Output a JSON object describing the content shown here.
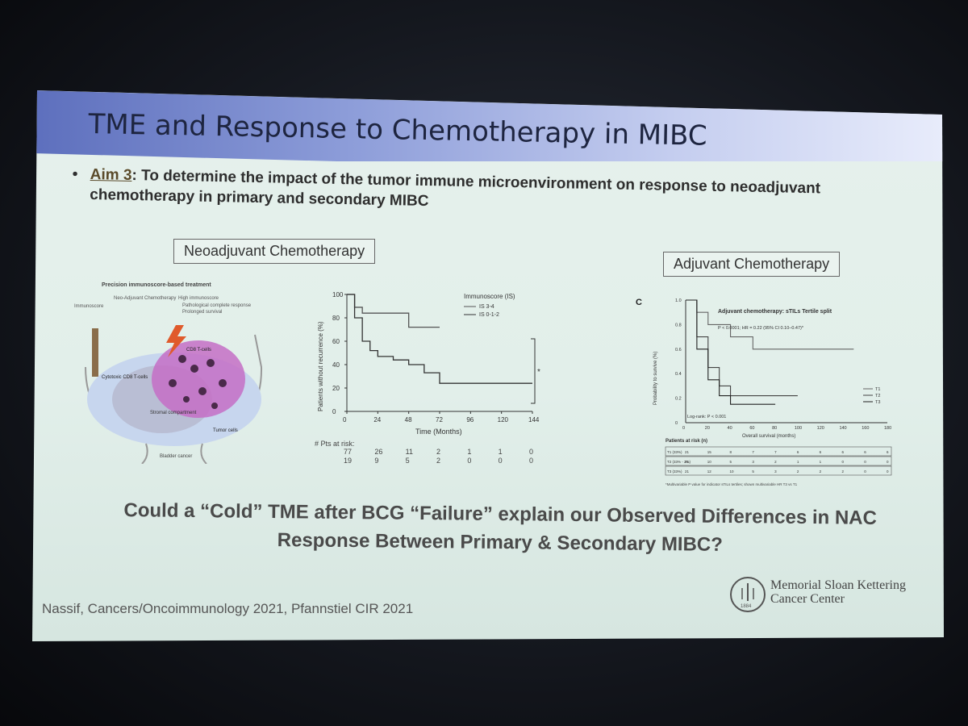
{
  "slide": {
    "title": "TME and Response to Chemotherapy in MIBC",
    "aim_bullet": "•",
    "aim_label": "Aim 3",
    "aim_text": ": To determine the impact of the tumor immune microenvironment on response to neoadjuvant chemotherapy in primary and secondary MIBC",
    "neo_label": "Neoadjuvant Chemotherapy",
    "adj_label": "Adjuvant Chemotherapy",
    "question_line1": "Could a “Cold” TME after BCG “Failure” explain our Observed Differences in NAC",
    "question_line2": "Response Between Primary & Secondary MIBC?",
    "citation": "Nassif, Cancers/Oncoimmunology 2021, Pfannstiel CIR 2021",
    "logo_line1": "Memorial Sloan Kettering",
    "logo_line2": "Cancer Center",
    "logo_year": "1884"
  },
  "figure1": {
    "title": "Precision immunoscore-based treatment",
    "label_immunoscore": "Immunoscore",
    "label_nac": "Neo-Adjuvant Chemotherapy",
    "label_high": "High immunoscore",
    "item1": "Pathological complete response",
    "item2": "Prolonged survival",
    "label_cd8": "CD8 T-cells",
    "label_cytotoxic": "Cytotoxic CD8 T-cells",
    "label_compartment": "Stromal compartment",
    "label_tumor": "Tumor cells",
    "label_bladder": "Bladder cancer"
  },
  "km1": {
    "ylabel": "Patients without recurrence (%)",
    "xlabel": "Time (Months)",
    "legend_title": "Immunoscore (IS)",
    "legend_items": [
      "IS 3-4",
      "IS 0-1-2"
    ],
    "x_ticks": [
      "0",
      "24",
      "48",
      "72",
      "96",
      "120",
      "144"
    ],
    "y_ticks": [
      "0",
      "20",
      "40",
      "60",
      "80",
      "100"
    ],
    "risk_label": "# Pts at risk:",
    "risk_rows": [
      [
        "77",
        "26",
        "11",
        "2",
        "1",
        "1",
        "0"
      ],
      [
        "19",
        "9",
        "5",
        "2",
        "0",
        "0",
        "0"
      ]
    ],
    "significance": "*"
  },
  "km2": {
    "panel": "C",
    "title": "Adjuvant chemotherapy: sTILs Tertile split",
    "stat": "P < 0.0001; HR = 0.22 (95% CI 0.10–0.47)*",
    "ylabel": "Probability to survive (%)",
    "xlabel": "Overall survival (months)",
    "logrank": "Log-rank: P < 0.001",
    "legend_items": [
      "T1",
      "T2",
      "T3"
    ],
    "x_ticks": [
      "0",
      "20",
      "40",
      "60",
      "80",
      "100",
      "120",
      "140",
      "160",
      "180"
    ],
    "y_ticks": [
      "0",
      "0.2",
      "0.4",
      "0.6",
      "0.8",
      "1.0"
    ],
    "risk_title": "Patients at risk (n)",
    "risk_rows": [
      {
        "group": "T1 (33%)",
        "values": [
          "21",
          "15",
          "8",
          "7",
          "7",
          "6",
          "6",
          "6",
          "6",
          "6"
        ]
      },
      {
        "group": "T2 (33% - 2%)",
        "values": [
          "21",
          "10",
          "5",
          "3",
          "2",
          "1",
          "1",
          "0",
          "0",
          "0"
        ]
      },
      {
        "group": "T3 (33%)",
        "values": [
          "21",
          "12",
          "10",
          "5",
          "3",
          "2",
          "2",
          "2",
          "0",
          "0"
        ]
      }
    ],
    "footnote": "*Multivariable P value for indicator sTILs tertiles; shown multivariable HR T3 vs T1"
  },
  "chart_data": [
    {
      "type": "line",
      "title": "",
      "xlabel": "Time (Months)",
      "ylabel": "Patients without recurrence (%)",
      "xlim": [
        0,
        144
      ],
      "ylim": [
        0,
        100
      ],
      "series": [
        {
          "name": "IS 3-4",
          "color": "#555555",
          "x": [
            0,
            6,
            12,
            18,
            24,
            36,
            48,
            60,
            72
          ],
          "y": [
            100,
            89,
            84,
            84,
            84,
            84,
            72,
            72,
            72
          ]
        },
        {
          "name": "IS 0-1-2",
          "color": "#333333",
          "x": [
            0,
            6,
            12,
            18,
            24,
            36,
            48,
            60,
            72,
            96,
            120,
            144
          ],
          "y": [
            100,
            80,
            60,
            52,
            47,
            44,
            40,
            33,
            24,
            24,
            24,
            24
          ]
        }
      ]
    },
    {
      "type": "line",
      "title": "Adjuvant chemotherapy: sTILs Tertile split",
      "xlabel": "Overall survival (months)",
      "ylabel": "Probability to survive (%)",
      "xlim": [
        0,
        180
      ],
      "ylim": [
        0,
        1.0
      ],
      "series": [
        {
          "name": "T1",
          "color": "#666666",
          "x": [
            0,
            10,
            20,
            40,
            60,
            80,
            100,
            150
          ],
          "y": [
            1.0,
            0.9,
            0.8,
            0.7,
            0.6,
            0.6,
            0.6,
            0.6
          ]
        },
        {
          "name": "T2",
          "color": "#444444",
          "x": [
            0,
            10,
            20,
            30,
            40,
            60,
            80,
            100
          ],
          "y": [
            1.0,
            0.7,
            0.45,
            0.3,
            0.22,
            0.22,
            0.22,
            0.22
          ]
        },
        {
          "name": "T3",
          "color": "#222222",
          "x": [
            0,
            10,
            20,
            30,
            40,
            60,
            80
          ],
          "y": [
            1.0,
            0.6,
            0.35,
            0.22,
            0.15,
            0.15,
            0.15
          ]
        }
      ]
    }
  ]
}
